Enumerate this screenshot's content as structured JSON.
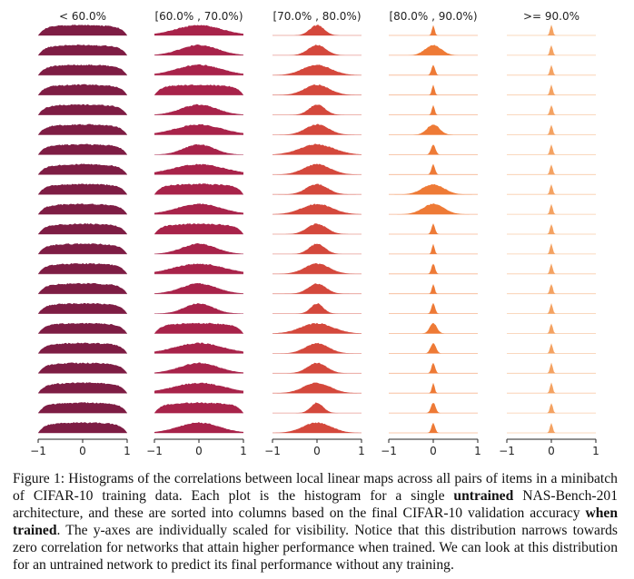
{
  "chart_data": {
    "type": "histogram-grid",
    "description_note": "Small-multiple histograms; one row per untrained network, columns by final validation accuracy",
    "columns": [
      {
        "title": "< 60.0%",
        "color": "#7e1d44",
        "widths": [
          0.72,
          0.7,
          0.66,
          0.68,
          0.74,
          0.66,
          0.7,
          0.64,
          0.72,
          0.68,
          0.7,
          0.66,
          0.72,
          0.7,
          0.68,
          0.66,
          0.72,
          0.7,
          0.68,
          0.7,
          0.72
        ]
      },
      {
        "title": "[60.0% , 70.0%)",
        "color": "#a8234a",
        "widths": [
          0.52,
          0.42,
          0.5,
          0.62,
          0.4,
          0.52,
          0.34,
          0.58,
          0.7,
          0.5,
          0.62,
          0.38,
          0.56,
          0.4,
          0.32,
          0.6,
          0.54,
          0.44,
          0.58,
          0.62,
          0.46
        ]
      },
      {
        "title": "[70.0% , 80.0%)",
        "color": "#d4483c",
        "widths": [
          0.16,
          0.2,
          0.32,
          0.28,
          0.18,
          0.26,
          0.38,
          0.3,
          0.24,
          0.34,
          0.22,
          0.18,
          0.28,
          0.2,
          0.14,
          0.36,
          0.26,
          0.22,
          0.3,
          0.14,
          0.32
        ]
      },
      {
        "title": "[80.0% , 90.0%)",
        "color": "#ee7a36",
        "widths": [
          0.03,
          0.18,
          0.04,
          0.03,
          0.03,
          0.14,
          0.05,
          0.04,
          0.24,
          0.24,
          0.04,
          0.03,
          0.04,
          0.03,
          0.04,
          0.08,
          0.06,
          0.04,
          0.03,
          0.05,
          0.04
        ]
      },
      {
        "title": ">= 90.0%",
        "color": "#f4a262",
        "widths": [
          0.03,
          0.03,
          0.03,
          0.03,
          0.03,
          0.03,
          0.03,
          0.03,
          0.03,
          0.03,
          0.03,
          0.03,
          0.03,
          0.03,
          0.03,
          0.03,
          0.03,
          0.03,
          0.03,
          0.03,
          0.03
        ]
      }
    ],
    "xlim": [
      -1,
      1
    ],
    "xticks": [
      "−1",
      "0",
      "1"
    ],
    "rows_per_column": 21
  },
  "caption": {
    "label": "Figure 1:",
    "part1": " Histograms of the correlations between local linear maps across all pairs of items in a minibatch of CIFAR-10 training data. Each plot is the histogram for a single ",
    "bold1": "untrained",
    "part2": " NAS-Bench-201 architecture, and these are sorted into columns based on the final CIFAR-10 validation accuracy ",
    "bold2": "when trained",
    "part3": ". The y-axes are individually scaled for visibility. Notice that this distribution narrows towards zero correlation for networks that attain higher performance when trained. We can look at this distribution for an untrained network to predict its final performance without any training."
  }
}
